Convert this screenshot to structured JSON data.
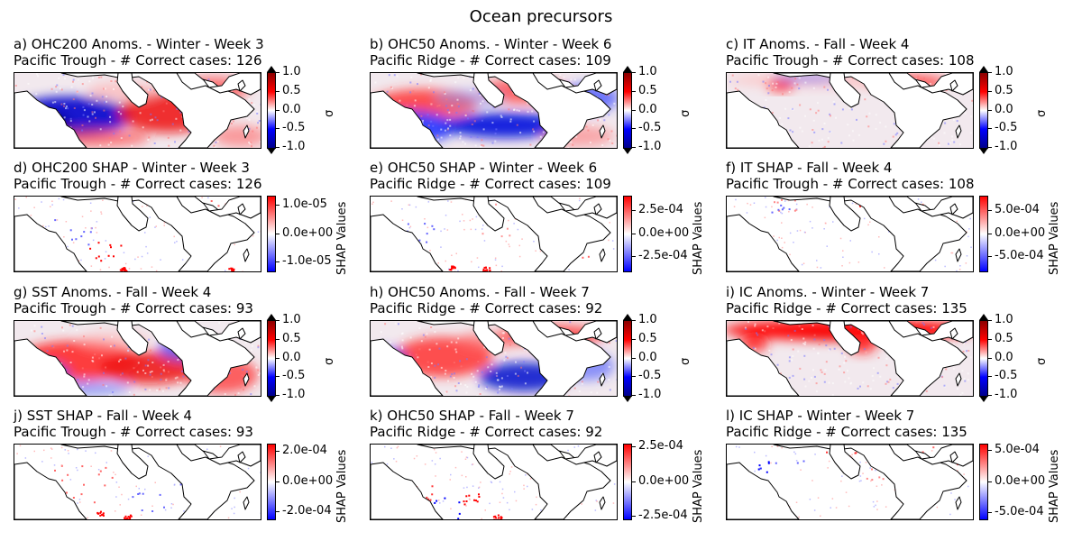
{
  "suptitle": "Ocean precursors",
  "colors": {
    "anom": [
      "#00008b",
      "#0000ff",
      "#ffffff",
      "#ff0000",
      "#8b0000"
    ],
    "shap": [
      "#0000ff",
      "#ffffff",
      "#ff0000"
    ],
    "land_outline": "#000000"
  },
  "chart_data": [
    {
      "type": "heatmap",
      "panel": "a",
      "title_line1": "a) OHC200 Anoms. - Winter - Week 3",
      "title_line2": "Pacific Trough - # Correct cases: 126",
      "colorbar_label": "σ",
      "colorbar_kind": "anom",
      "colorbar_ticks": [
        "1.0",
        "0.5",
        "0.0",
        "-0.5",
        "-1.0"
      ],
      "clim": [
        -1.0,
        1.0
      ]
    },
    {
      "type": "heatmap",
      "panel": "b",
      "title_line1": "b) OHC50 Anoms. - Winter - Week 6",
      "title_line2": "Pacific Ridge - # Correct cases: 109",
      "colorbar_label": "σ",
      "colorbar_kind": "anom",
      "colorbar_ticks": [
        "1.0",
        "0.5",
        "0.0",
        "-0.5",
        "-1.0"
      ],
      "clim": [
        -1.0,
        1.0
      ]
    },
    {
      "type": "heatmap",
      "panel": "c",
      "title_line1": "c) IT Anoms. - Fall - Week 4",
      "title_line2": "Pacific Trough - # Correct cases: 108",
      "colorbar_label": "σ",
      "colorbar_kind": "anom",
      "colorbar_ticks": [
        "1.0",
        "0.5",
        "0.0",
        "-0.5",
        "-1.0"
      ],
      "clim": [
        -1.0,
        1.0
      ]
    },
    {
      "type": "heatmap",
      "panel": "d",
      "title_line1": "d) OHC200 SHAP - Winter - Week 3",
      "title_line2": "Pacific Trough - # Correct cases: 126",
      "colorbar_label": "SHAP Values",
      "colorbar_kind": "shap",
      "colorbar_ticks": [
        "1.0e-05",
        "0.0e+00",
        "-1.0e-05"
      ],
      "clim": [
        -1.3e-05,
        1.3e-05
      ]
    },
    {
      "type": "heatmap",
      "panel": "e",
      "title_line1": "e) OHC50 SHAP - Winter - Week 6",
      "title_line2": "Pacific Ridge - # Correct cases: 109",
      "colorbar_label": "SHAP Values",
      "colorbar_kind": "shap",
      "colorbar_ticks": [
        "2.5e-04",
        "0.0e+00",
        "-2.5e-04"
      ],
      "clim": [
        -0.0004,
        0.0004
      ]
    },
    {
      "type": "heatmap",
      "panel": "f",
      "title_line1": "f) IT SHAP - Fall - Week 4",
      "title_line2": "Pacific Trough - # Correct cases: 108",
      "colorbar_label": "SHAP Values",
      "colorbar_kind": "shap",
      "colorbar_ticks": [
        "5.0e-04",
        "0.0e+00",
        "-5.0e-04"
      ],
      "clim": [
        -0.0008,
        0.0008
      ]
    },
    {
      "type": "heatmap",
      "panel": "g",
      "title_line1": "g) SST Anoms. - Fall - Week 4",
      "title_line2": "Pacific Trough - # Correct cases: 93",
      "colorbar_label": "σ",
      "colorbar_kind": "anom",
      "colorbar_ticks": [
        "1.0",
        "0.5",
        "0.0",
        "-0.5",
        "-1.0"
      ],
      "clim": [
        -1.0,
        1.0
      ]
    },
    {
      "type": "heatmap",
      "panel": "h",
      "title_line1": "h) OHC50 Anoms. - Fall - Week 7",
      "title_line2": "Pacific Ridge - # Correct cases: 92",
      "colorbar_label": "σ",
      "colorbar_kind": "anom",
      "colorbar_ticks": [
        "1.0",
        "0.5",
        "0.0",
        "-0.5",
        "-1.0"
      ],
      "clim": [
        -1.0,
        1.0
      ]
    },
    {
      "type": "heatmap",
      "panel": "i",
      "title_line1": "i) IC Anoms. - Winter - Week 7",
      "title_line2": "Pacific Ridge - # Correct cases: 135",
      "colorbar_label": "σ",
      "colorbar_kind": "anom",
      "colorbar_ticks": [
        "1.0",
        "0.5",
        "0.0",
        "-0.5",
        "-1.0"
      ],
      "clim": [
        -1.0,
        1.0
      ]
    },
    {
      "type": "heatmap",
      "panel": "j",
      "title_line1": "j) SST SHAP - Fall - Week 4",
      "title_line2": "Pacific Trough - # Correct cases: 93",
      "colorbar_label": "SHAP Values",
      "colorbar_kind": "shap",
      "colorbar_ticks": [
        "2.0e-04",
        "0.0e+00",
        "-2.0e-04"
      ],
      "clim": [
        -0.00025,
        0.00025
      ]
    },
    {
      "type": "heatmap",
      "panel": "k",
      "title_line1": "k) OHC50 SHAP - Fall - Week 7",
      "title_line2": "Pacific Ridge - # Correct cases: 92",
      "colorbar_label": "SHAP Values",
      "colorbar_kind": "shap",
      "colorbar_ticks": [
        "2.5e-04",
        "0.0e+00",
        "-2.5e-04"
      ],
      "clim": [
        -0.00027,
        0.00027
      ]
    },
    {
      "type": "heatmap",
      "panel": "l",
      "title_line1": "l) IC SHAP - Winter - Week 7",
      "title_line2": "Pacific Ridge - # Correct cases: 135",
      "colorbar_label": "SHAP Values",
      "colorbar_kind": "shap",
      "colorbar_ticks": [
        "5.0e-04",
        "0.0e+00",
        "-5.0e-04"
      ],
      "clim": [
        -0.0006,
        0.0006
      ]
    }
  ]
}
